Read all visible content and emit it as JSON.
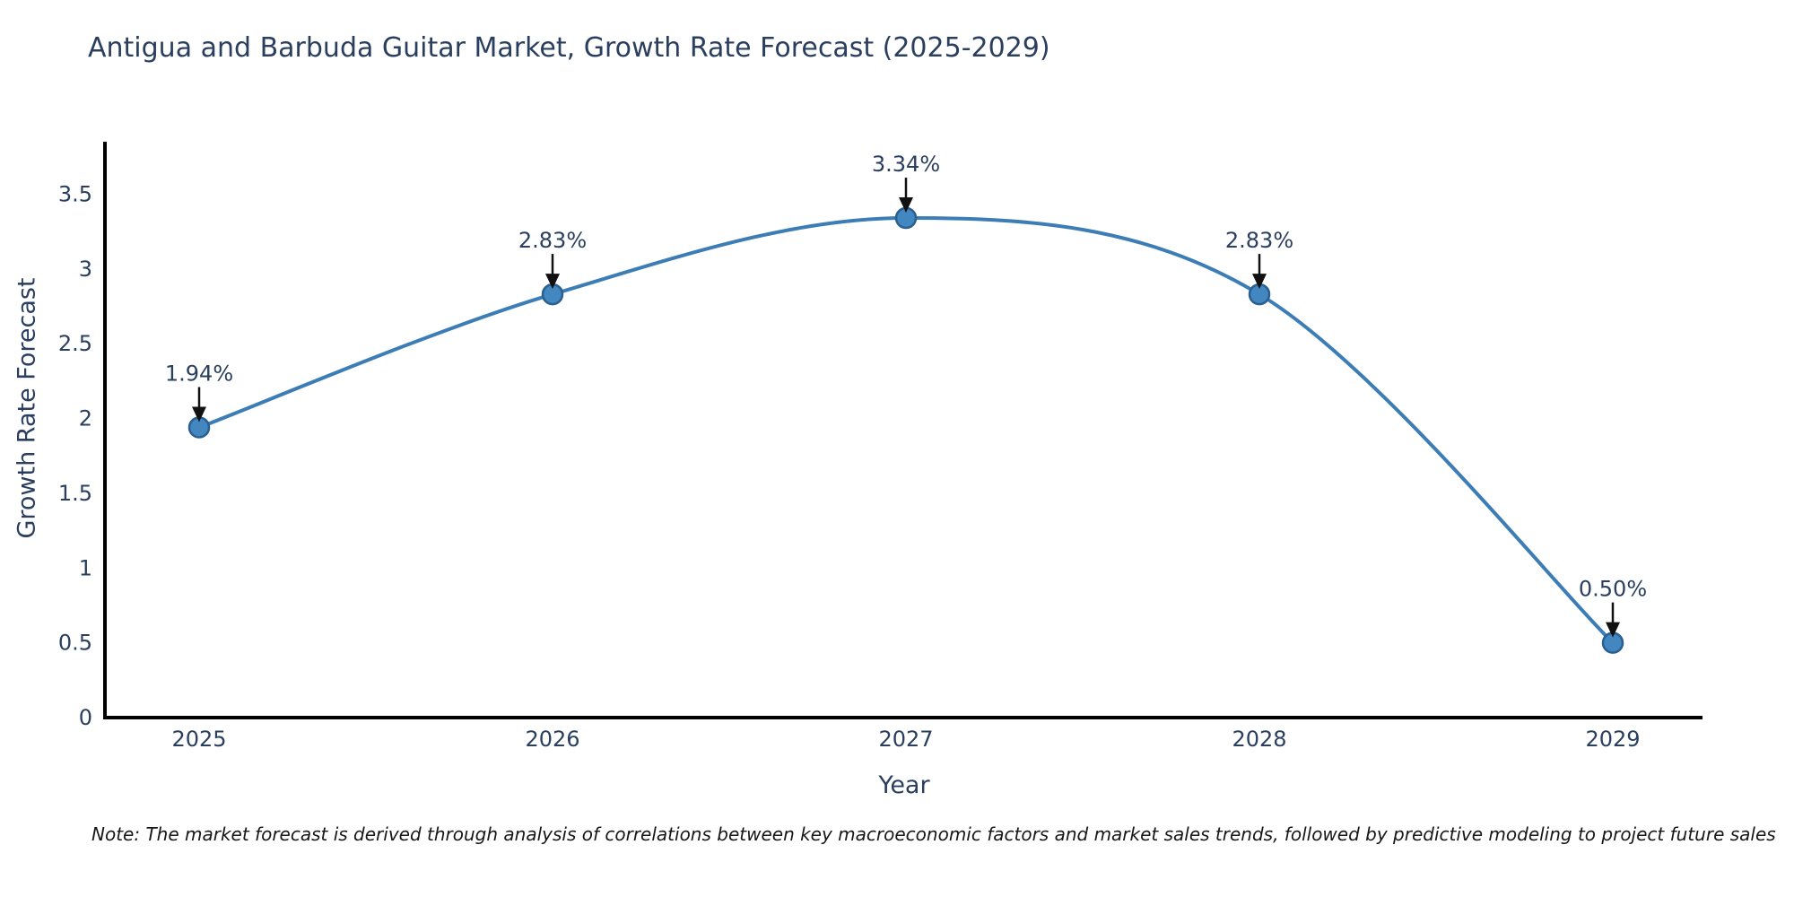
{
  "note": "Note: The market forecast is derived through analysis of correlations between key macroeconomic factors and market sales trends, followed by predictive modeling to project future sales",
  "chart_data": {
    "type": "line",
    "title": "Antigua and Barbuda Guitar Market, Growth Rate Forecast (2025-2029)",
    "xlabel": "Year",
    "ylabel": "Growth Rate Forecast",
    "categories": [
      "2025",
      "2026",
      "2027",
      "2028",
      "2029"
    ],
    "series": [
      {
        "name": "Growth Rate Forecast",
        "values": [
          1.94,
          2.83,
          3.34,
          2.83,
          0.5
        ],
        "point_labels": [
          "1.94%",
          "2.83%",
          "3.34%",
          "2.83%",
          "0.50%"
        ]
      }
    ],
    "yticks": [
      0,
      0.5,
      1,
      1.5,
      2,
      2.5,
      3,
      3.5
    ],
    "ytick_labels": [
      "0",
      "0.5",
      "1",
      "1.5",
      "2",
      "2.5",
      "3",
      "3.5"
    ],
    "ylim": [
      0,
      3.85
    ],
    "grid": false,
    "legend_position": "none",
    "line_shape": "spline",
    "colors": {
      "line": "#3d7db6",
      "marker_fill": "#4387c1",
      "marker_edge": "#2a5f8f",
      "axis": "#000000",
      "tick_text": "#2a3f5f",
      "annotation_text": "#2a3f5f",
      "annotation_arrow": "#111111",
      "background": "#ffffff"
    }
  }
}
